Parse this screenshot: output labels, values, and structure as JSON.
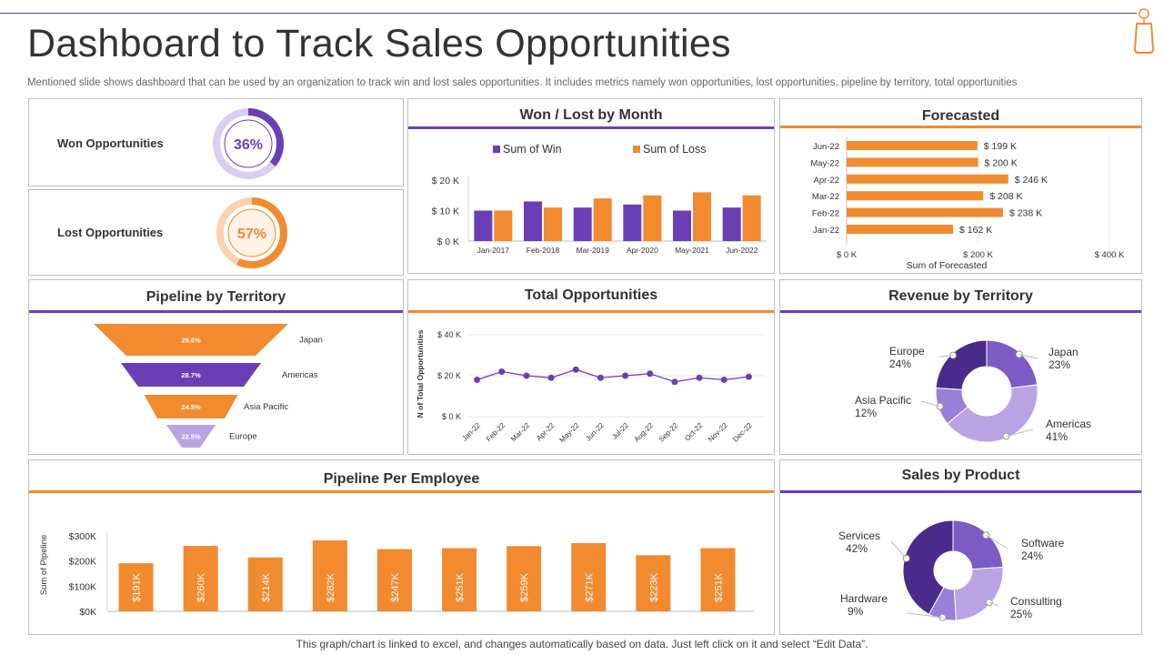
{
  "page": {
    "title": "Dashboard to Track Sales Opportunities",
    "subtitle": "Mentioned slide shows dashboard that can be used by an organization to track win and lost sales opportunities. It includes metrics namely won opportunities, lost opportunities, pipeline by territory, total opportunities",
    "footer": "This graph/chart is linked to excel, and changes automatically based on data. Just left click on it and select “Edit Data”."
  },
  "colors": {
    "purple": "#6a3fb5",
    "orange": "#f28a30",
    "light_purple": "#b9a3e3",
    "dark_purple": "#4a2a8a",
    "mid_purple": "#7c5cc4"
  },
  "kpis": {
    "won": {
      "label": "Won Opportunities",
      "value": "36%",
      "fraction": 0.36
    },
    "lost": {
      "label": "Lost Opportunities",
      "value": "57%",
      "fraction": 0.57
    }
  },
  "chart_data": [
    {
      "id": "won_lost",
      "type": "bar",
      "title": "Won / Lost by Month",
      "categories": [
        "Jan-2017",
        "Feb-2018",
        "Mar-2019",
        "Apr-2020",
        "May-2021",
        "Jun-2022"
      ],
      "series": [
        {
          "name": "Sum of Win",
          "values": [
            10,
            13,
            11,
            12,
            10,
            11
          ]
        },
        {
          "name": "Sum of Loss",
          "values": [
            10,
            11,
            14,
            15,
            16,
            15
          ]
        }
      ],
      "yticks": [
        "$ 0 K",
        "$ 10 K",
        "$ 20 K"
      ],
      "ylim": [
        0,
        20
      ],
      "legend": "top"
    },
    {
      "id": "forecasted",
      "type": "bar",
      "orientation": "horizontal",
      "title": "Forecasted",
      "categories": [
        "Jun-22",
        "May-22",
        "Apr-22",
        "Mar-22",
        "Feb-22",
        "Jan-22"
      ],
      "values": [
        199,
        200,
        246,
        208,
        238,
        162
      ],
      "value_labels": [
        "$ 199 K",
        "$ 200 K",
        "$ 246 K",
        "$ 208 K",
        "$ 238 K",
        "$ 162 K"
      ],
      "xticks": [
        "$ 0 K",
        "$ 200 K",
        "$ 400 K"
      ],
      "xlim": [
        0,
        400
      ],
      "xlabel": "Sum of Forecasted"
    },
    {
      "id": "pipeline_territory",
      "type": "funnel",
      "title": "Pipeline by Territory",
      "categories": [
        "Japan",
        "Americas",
        "Asia Pacific",
        "Europe"
      ],
      "values": [
        29.6,
        28.7,
        24.5,
        22.5
      ],
      "value_labels": [
        "29.6%",
        "28.7%",
        "24.5%",
        "22.5%"
      ]
    },
    {
      "id": "total_opps",
      "type": "line",
      "title": "Total Opportunities",
      "categories": [
        "Jan-22",
        "Feb-22",
        "Mar-22",
        "Apr-22",
        "May-22",
        "Jun-22",
        "Jul-22",
        "Aug-22",
        "Sep-22",
        "Oct-22",
        "Nov-22",
        "Dec-22"
      ],
      "values": [
        18,
        22,
        20,
        19,
        23,
        19,
        20,
        21,
        17,
        19,
        18,
        19.5
      ],
      "yticks": [
        "$ 0 K",
        "$ 20 K",
        "$ 40 K"
      ],
      "ylim": [
        0,
        40
      ],
      "ylabel": "N of Total Opportunities"
    },
    {
      "id": "revenue_territory",
      "type": "pie",
      "title": "Revenue by Territory",
      "slices": [
        {
          "name": "Japan",
          "value": 23,
          "label": "23%"
        },
        {
          "name": "Americas",
          "value": 41,
          "label": "41%"
        },
        {
          "name": "Asia Pacific",
          "value": 12,
          "label": "12%"
        },
        {
          "name": "Europe",
          "value": 24,
          "label": "24%"
        }
      ]
    },
    {
      "id": "pipeline_employee",
      "type": "bar",
      "title": "Pipeline Per Employee",
      "values": [
        191,
        260,
        214,
        282,
        247,
        251,
        259,
        271,
        223,
        251
      ],
      "value_labels": [
        "$191K",
        "$260K",
        "$214K",
        "$282K",
        "$247K",
        "$251K",
        "$259K",
        "$271K",
        "$223K",
        "$251K"
      ],
      "yticks": [
        "$0K",
        "$100K",
        "$200K",
        "$300K"
      ],
      "ylim": [
        0,
        300
      ],
      "ylabel": "Sum of Pipeline"
    },
    {
      "id": "sales_product",
      "type": "pie",
      "title": "Sales by Product",
      "slices": [
        {
          "name": "Software",
          "value": 24,
          "label": "24%"
        },
        {
          "name": "Consulting",
          "value": 25,
          "label": "25%"
        },
        {
          "name": "Hardware",
          "value": 9,
          "label": "9%"
        },
        {
          "name": "Services",
          "value": 42,
          "label": "42%"
        }
      ]
    }
  ]
}
